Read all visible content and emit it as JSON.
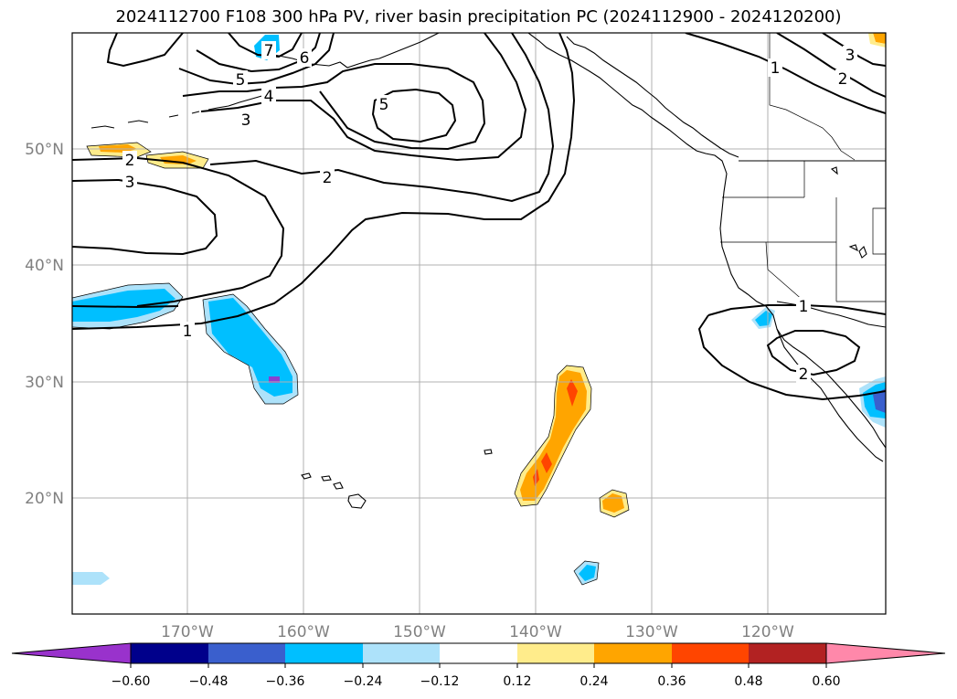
{
  "title": "2024112700 F108 300 hPa PV, river basin precipitation PC (2024112900 - 2024120200)",
  "lat_labels": [
    "50°N",
    "40°N",
    "30°N",
    "20°N"
  ],
  "lon_labels": [
    "170°W",
    "160°W",
    "150°W",
    "140°W",
    "130°W",
    "120°W"
  ],
  "contour_labels": [
    "7",
    "6",
    "5",
    "4",
    "3",
    "5",
    "2",
    "3",
    "2",
    "1",
    "1",
    "2",
    "1",
    "2",
    "3"
  ],
  "colorbar": {
    "tick_labels": [
      "−0.60",
      "−0.48",
      "−0.36",
      "−0.24",
      "−0.12",
      "0.12",
      "0.24",
      "0.36",
      "0.48",
      "0.60"
    ],
    "bins": [
      {
        "range": "< -0.60",
        "color": "#9932CC"
      },
      {
        "range": "-0.60 to -0.48",
        "color": "#00008B"
      },
      {
        "range": "-0.48 to -0.36",
        "color": "#3A5FCD"
      },
      {
        "range": "-0.36 to -0.24",
        "color": "#00BFFF"
      },
      {
        "range": "-0.24 to -0.12",
        "color": "#ADE2FA"
      },
      {
        "range": "-0.12 to 0.12",
        "color": "#FFFFFF"
      },
      {
        "range": "0.12 to 0.24",
        "color": "#FFEC8B"
      },
      {
        "range": "0.24 to 0.36",
        "color": "#FFA500"
      },
      {
        "range": "0.36 to 0.48",
        "color": "#FF4500"
      },
      {
        "range": "0.48 to 0.60",
        "color": "#B22222"
      },
      {
        "range": "> 0.60",
        "color": "#FF88AA"
      }
    ]
  }
}
